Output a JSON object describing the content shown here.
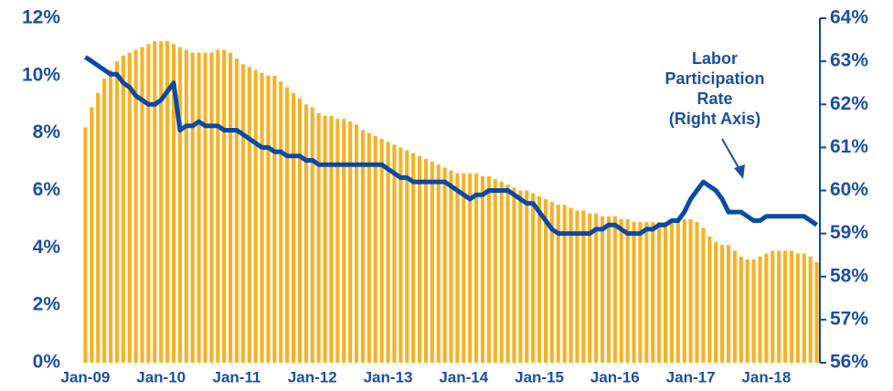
{
  "chart_data": {
    "type": "bar-line",
    "categories": [
      "Jan-09",
      null,
      null,
      null,
      null,
      null,
      null,
      null,
      null,
      null,
      null,
      null,
      "Jan-10",
      null,
      null,
      null,
      null,
      null,
      null,
      null,
      null,
      null,
      null,
      null,
      "Jan-11",
      null,
      null,
      null,
      null,
      null,
      null,
      null,
      null,
      null,
      null,
      null,
      "Jan-12",
      null,
      null,
      null,
      null,
      null,
      null,
      null,
      null,
      null,
      null,
      null,
      "Jan-13",
      null,
      null,
      null,
      null,
      null,
      null,
      null,
      null,
      null,
      null,
      null,
      "Jan-14",
      null,
      null,
      null,
      null,
      null,
      null,
      null,
      null,
      null,
      null,
      null,
      "Jan-15",
      null,
      null,
      null,
      null,
      null,
      null,
      null,
      null,
      null,
      null,
      null,
      "Jan-16",
      null,
      null,
      null,
      null,
      null,
      null,
      null,
      null,
      null,
      null,
      null,
      "Jan-17",
      null,
      null,
      null,
      null,
      null,
      null,
      null,
      null,
      null,
      null,
      null,
      "Jan-18",
      null,
      null,
      null,
      null,
      null,
      null,
      null,
      null
    ],
    "series": [
      {
        "type": "bar",
        "color": "#f5b226",
        "values": [
          8.2,
          8.9,
          9.4,
          9.9,
          10.2,
          10.5,
          10.7,
          10.8,
          10.9,
          11.0,
          11.1,
          11.2,
          11.2,
          11.2,
          11.1,
          11.0,
          10.9,
          10.8,
          10.8,
          10.8,
          10.8,
          10.9,
          10.9,
          10.8,
          10.6,
          10.4,
          10.3,
          10.2,
          10.1,
          10.0,
          10.0,
          9.8,
          9.6,
          9.4,
          9.2,
          9.0,
          8.9,
          8.7,
          8.6,
          8.6,
          8.5,
          8.5,
          8.4,
          8.3,
          8.1,
          8.0,
          7.9,
          7.8,
          7.7,
          7.6,
          7.5,
          7.4,
          7.3,
          7.2,
          7.1,
          7.0,
          6.9,
          6.8,
          6.7,
          6.6,
          6.6,
          6.6,
          6.6,
          6.5,
          6.5,
          6.4,
          6.3,
          6.2,
          6.1,
          6.0,
          6.0,
          5.9,
          5.8,
          5.7,
          5.6,
          5.5,
          5.5,
          5.4,
          5.3,
          5.3,
          5.2,
          5.2,
          5.1,
          5.1,
          5.1,
          5.0,
          5.0,
          4.9,
          4.9,
          4.9,
          4.9,
          4.9,
          4.9,
          5.0,
          5.0,
          5.0,
          5.0,
          4.9,
          4.7,
          4.4,
          4.2,
          4.1,
          4.1,
          3.9,
          3.7,
          3.6,
          3.6,
          3.7,
          3.8,
          3.9,
          3.9,
          3.9,
          3.9,
          3.8,
          3.8,
          3.7,
          3.5
        ]
      },
      {
        "type": "line",
        "axis": "y2",
        "color": "#0a4aa6",
        "values": [
          63.1,
          63.0,
          62.9,
          62.8,
          62.7,
          62.7,
          62.5,
          62.4,
          62.2,
          62.1,
          62.0,
          62.0,
          62.1,
          62.3,
          62.5,
          61.4,
          61.5,
          61.5,
          61.6,
          61.5,
          61.5,
          61.5,
          61.4,
          61.4,
          61.4,
          61.3,
          61.2,
          61.1,
          61.0,
          61.0,
          60.9,
          60.9,
          60.8,
          60.8,
          60.8,
          60.7,
          60.7,
          60.6,
          60.6,
          60.6,
          60.6,
          60.6,
          60.6,
          60.6,
          60.6,
          60.6,
          60.6,
          60.6,
          60.5,
          60.4,
          60.3,
          60.3,
          60.2,
          60.2,
          60.2,
          60.2,
          60.2,
          60.2,
          60.1,
          60.0,
          59.9,
          59.8,
          59.9,
          59.9,
          60.0,
          60.0,
          60.0,
          60.0,
          59.9,
          59.8,
          59.7,
          59.7,
          59.5,
          59.3,
          59.1,
          59.0,
          59.0,
          59.0,
          59.0,
          59.0,
          59.0,
          59.1,
          59.1,
          59.2,
          59.2,
          59.1,
          59.0,
          59.0,
          59.0,
          59.1,
          59.1,
          59.2,
          59.2,
          59.3,
          59.3,
          59.5,
          59.8,
          60.0,
          60.2,
          60.1,
          60.0,
          59.8,
          59.5,
          59.5,
          59.5,
          59.4,
          59.3,
          59.3,
          59.4,
          59.4,
          59.4,
          59.4,
          59.4,
          59.4,
          59.4,
          59.3,
          59.2
        ]
      }
    ],
    "ylim": [
      0,
      12
    ],
    "yticks": [
      {
        "value": 0,
        "label": "0%"
      },
      {
        "value": 2,
        "label": "2%"
      },
      {
        "value": 4,
        "label": "4%"
      },
      {
        "value": 6,
        "label": "6%"
      },
      {
        "value": 8,
        "label": "8%"
      },
      {
        "value": 10,
        "label": "10%"
      },
      {
        "value": 12,
        "label": "12%"
      }
    ],
    "y2lim": [
      56,
      64
    ],
    "y2ticks": [
      {
        "value": 56,
        "label": "56%"
      },
      {
        "value": 57,
        "label": "57%"
      },
      {
        "value": 58,
        "label": "58%"
      },
      {
        "value": 59,
        "label": "59%"
      },
      {
        "value": 60,
        "label": "60%"
      },
      {
        "value": 61,
        "label": "61%"
      },
      {
        "value": 62,
        "label": "62%"
      },
      {
        "value": 63,
        "label": "63%"
      },
      {
        "value": 64,
        "label": "64%"
      }
    ],
    "annotation": [
      "Labor",
      "Participation",
      "Rate",
      "(Right Axis)"
    ]
  }
}
